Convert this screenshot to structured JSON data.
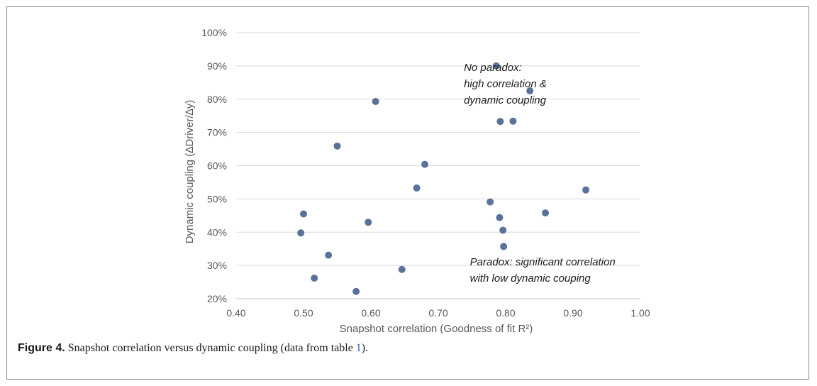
{
  "chart_data": {
    "type": "scatter",
    "xlabel": "Snapshot correlation (Goodness of fit R²)",
    "ylabel": "Dynamic coupling (∆Driver/∆y)",
    "xlim": [
      0.4,
      1.0
    ],
    "ylim": [
      0.2,
      1.0
    ],
    "x_ticks": [
      "0.40",
      "0.50",
      "0.60",
      "0.70",
      "0.80",
      "0.90",
      "1.00"
    ],
    "y_ticks": [
      "20%",
      "30%",
      "40%",
      "50%",
      "60%",
      "70%",
      "80%",
      "90%",
      "100%"
    ],
    "grid": "horizontal",
    "marker_color": "#5a7299",
    "points": [
      {
        "x": 0.786,
        "y": 0.9
      },
      {
        "x": 0.836,
        "y": 0.825
      },
      {
        "x": 0.607,
        "y": 0.793
      },
      {
        "x": 0.792,
        "y": 0.733
      },
      {
        "x": 0.811,
        "y": 0.734
      },
      {
        "x": 0.55,
        "y": 0.659
      },
      {
        "x": 0.68,
        "y": 0.604
      },
      {
        "x": 0.668,
        "y": 0.533
      },
      {
        "x": 0.919,
        "y": 0.527
      },
      {
        "x": 0.777,
        "y": 0.491
      },
      {
        "x": 0.859,
        "y": 0.458
      },
      {
        "x": 0.5,
        "y": 0.455
      },
      {
        "x": 0.791,
        "y": 0.444
      },
      {
        "x": 0.596,
        "y": 0.43
      },
      {
        "x": 0.796,
        "y": 0.406
      },
      {
        "x": 0.496,
        "y": 0.398
      },
      {
        "x": 0.797,
        "y": 0.357
      },
      {
        "x": 0.537,
        "y": 0.331
      },
      {
        "x": 0.646,
        "y": 0.288
      },
      {
        "x": 0.516,
        "y": 0.262
      },
      {
        "x": 0.578,
        "y": 0.222
      }
    ],
    "annotations": [
      {
        "lines": [
          "No paradox:",
          "high correlation &",
          "dynamic coupling"
        ],
        "x": 0.738,
        "y": 0.885
      },
      {
        "lines": [
          "Paradox:  significant correlation",
          "with low dynamic couping"
        ],
        "x": 0.747,
        "y": 0.3
      }
    ]
  },
  "caption": {
    "label": "Figure 4.",
    "text_before": " Snapshot correlation versus dynamic coupling (data from table ",
    "link": "1",
    "text_after": ")."
  }
}
